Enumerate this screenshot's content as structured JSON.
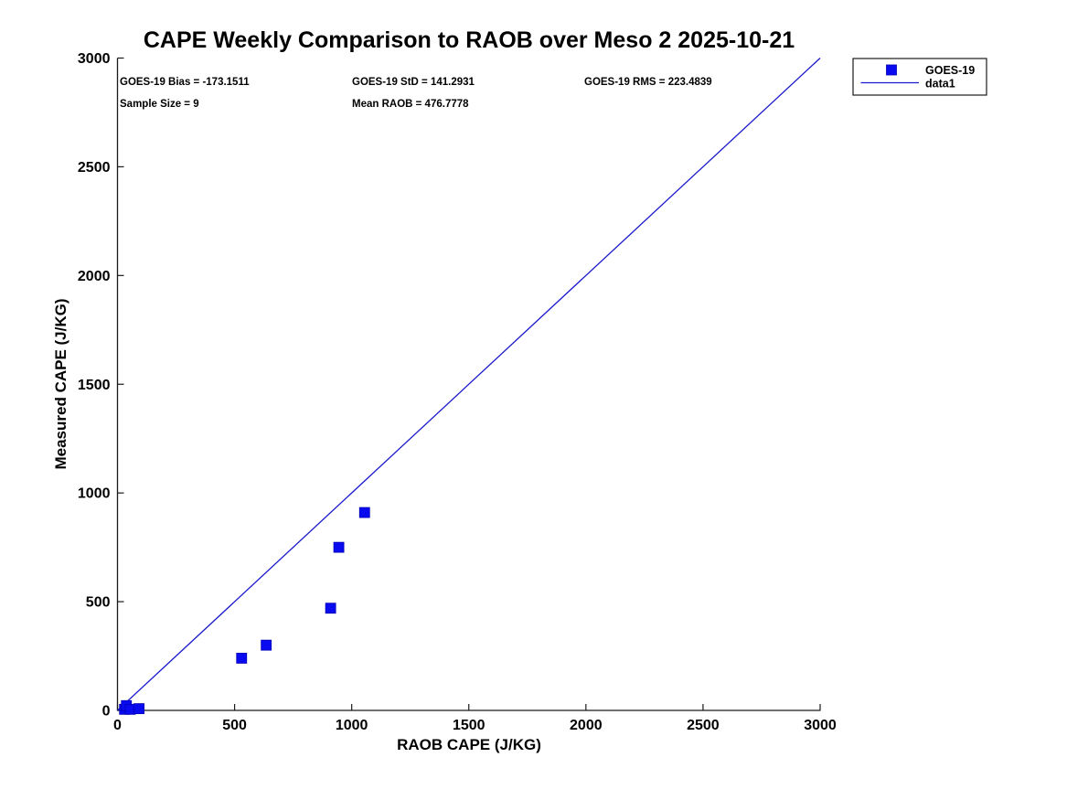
{
  "figure_title": "CAPE Weekly Comparison to RAOB over Meso 2 2025-10-21",
  "stats": {
    "bias": "GOES-19 Bias = -173.1511",
    "std": "GOES-19 StD = 141.2931",
    "rms": "GOES-19 RMS = 223.4839",
    "sample_size": "Sample Size = 9",
    "mean_raob": "Mean RAOB = 476.7778"
  },
  "legend": {
    "marker_label": "GOES-19",
    "line_label": "data1"
  },
  "colors": {
    "marker_fill": "#0a0af0",
    "marker_edge": "#0000b4",
    "line": "#1a1acc",
    "axis": "#1a1a1a",
    "text": "#000000",
    "background": "#ffffff"
  },
  "chart_data": {
    "type": "scatter",
    "title": "CAPE Weekly Comparison to RAOB over Meso 2 2025-10-21",
    "xlabel": "RAOB CAPE (J/KG)",
    "ylabel": "Measured CAPE (J/KG)",
    "xlim": [
      0,
      3000
    ],
    "ylim": [
      0,
      3000
    ],
    "xticks": [
      0,
      500,
      1000,
      1500,
      2000,
      2500,
      3000
    ],
    "yticks": [
      0,
      500,
      1000,
      1500,
      2000,
      2500,
      3000
    ],
    "grid": false,
    "legend_position": "top-right",
    "series": [
      {
        "name": "GOES-19",
        "type": "scatter",
        "marker": "filled-square",
        "color": "#0a0af0",
        "points": [
          [
            30,
            5
          ],
          [
            38,
            22
          ],
          [
            55,
            5
          ],
          [
            92,
            8
          ],
          [
            530,
            240
          ],
          [
            635,
            300
          ],
          [
            910,
            470
          ],
          [
            945,
            750
          ],
          [
            1055,
            910
          ]
        ]
      },
      {
        "name": "data1",
        "type": "line",
        "color": "#1a1acc",
        "points": [
          [
            0,
            0
          ],
          [
            3000,
            3000
          ]
        ]
      }
    ],
    "annotations": [
      "GOES-19 Bias = -173.1511",
      "GOES-19 StD = 141.2931",
      "GOES-19 RMS = 223.4839",
      "Sample Size = 9",
      "Mean RAOB = 476.7778"
    ]
  }
}
